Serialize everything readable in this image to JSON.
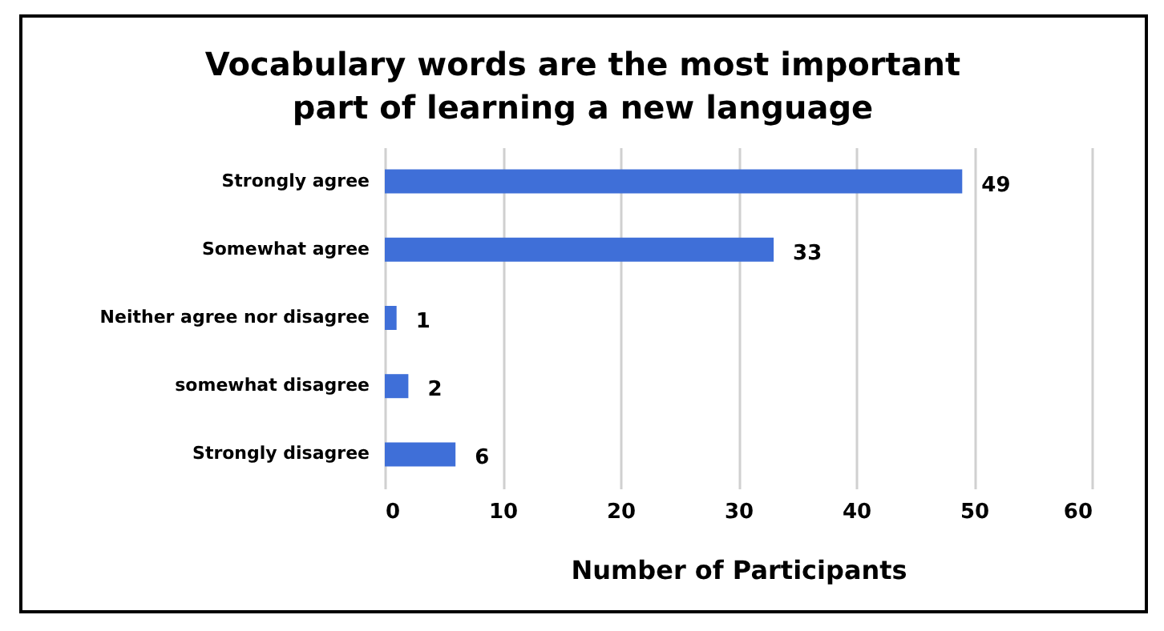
{
  "chart_data": {
    "type": "bar",
    "orientation": "horizontal",
    "title": "Vocabulary words are the most important part of learning a new language",
    "xlabel": "Number of Participants",
    "categories": [
      "Strongly agree",
      "Somewhat agree",
      "Neither agree nor disagree",
      "somewhat disagree",
      "Strongly disagree"
    ],
    "values": [
      49,
      33,
      1,
      2,
      6
    ],
    "color": "#3f6fd8",
    "xlim": [
      0,
      60
    ],
    "xticks": [
      0,
      10,
      20,
      30,
      40,
      50,
      60
    ],
    "grid": "x",
    "data_labels": true
  }
}
